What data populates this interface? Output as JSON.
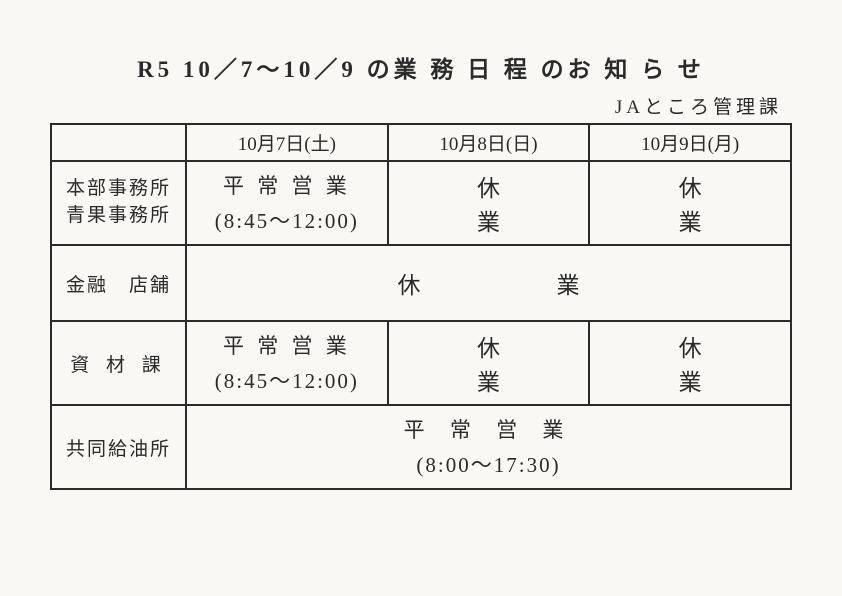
{
  "title": "R5 10／7～10／9 の業 務 日 程 のお 知 ら せ",
  "subtitle": "JAところ管理課",
  "table": {
    "columns": [
      "10月7日(土)",
      "10月8日(日)",
      "10月9日(月)"
    ],
    "rows": [
      {
        "label_line1": "本部事務所",
        "label_line2": "青果事務所",
        "cells": [
          {
            "line1": "平 常 営 業",
            "line2": "(8:45～12:00)",
            "colspan": 1
          },
          {
            "line1": "休　　業",
            "colspan": 1
          },
          {
            "line1": "休　　業",
            "colspan": 1
          }
        ]
      },
      {
        "label_line1": "金融　店舗",
        "cells": [
          {
            "line1": "休　　業",
            "colspan": 3
          }
        ]
      },
      {
        "label_line1": "資 材 課",
        "cells": [
          {
            "line1": "平 常 営 業",
            "line2": "(8:45～12:00)",
            "colspan": 1
          },
          {
            "line1": "休　　業",
            "colspan": 1
          },
          {
            "line1": "休　　業",
            "colspan": 1
          }
        ]
      },
      {
        "label_line1": "共同給油所",
        "cells": [
          {
            "line1": "平 常 営 業",
            "line2": "(8:00～17:30)",
            "colspan": 3
          }
        ]
      }
    ]
  },
  "colors": {
    "background": "#f9f8f4",
    "text": "#2a2a2a",
    "border": "#2a2a2a"
  }
}
